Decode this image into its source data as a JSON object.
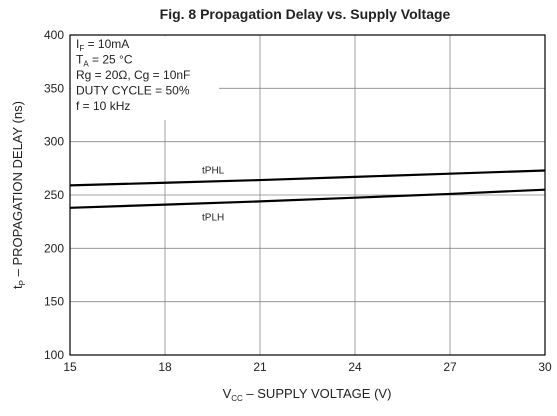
{
  "chart_data": {
    "type": "line",
    "title": "Fig. 8 Propagation Delay vs. Supply Voltage",
    "xlabel": [
      "V",
      "CC",
      " – SUPPLY VOLTAGE (V)"
    ],
    "ylabel": [
      "t",
      "P",
      " – PROPAGATION DELAY (ns)"
    ],
    "annotations": [
      [
        "I",
        "F",
        " = 10mA"
      ],
      [
        "T",
        "A",
        " = 25 °C"
      ],
      [
        "Rg = 20Ω, Cg = 10nF"
      ],
      [
        "DUTY CYCLE = 50%"
      ],
      [
        "f = 10 kHz"
      ]
    ],
    "x": [
      15,
      18,
      21,
      24,
      27,
      30
    ],
    "series": [
      {
        "name": "tPHL",
        "color": "#000000",
        "values": [
          259,
          261.5,
          264,
          267,
          270,
          273
        ]
      },
      {
        "name": "tPLH",
        "color": "#000000",
        "values": [
          238,
          241,
          244,
          247.5,
          251,
          255
        ]
      }
    ],
    "xlim": [
      15,
      30
    ],
    "xticks": [
      15,
      18,
      21,
      24,
      27,
      30
    ],
    "ylim": [
      100,
      400
    ],
    "yticks": [
      100,
      150,
      200,
      250,
      300,
      350,
      400
    ],
    "grid": true
  }
}
